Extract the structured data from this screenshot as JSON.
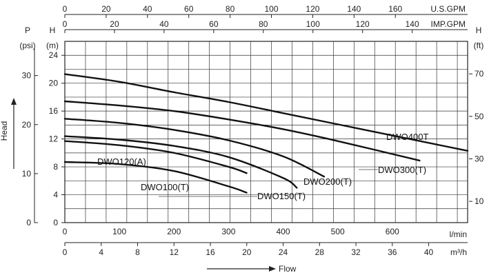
{
  "chart_data": {
    "type": "line",
    "title": "",
    "axes": {
      "top_us_gpm": {
        "unit": "U.S.GPM",
        "ticks": [
          "0",
          "20",
          "40",
          "60",
          "80",
          "100",
          "120",
          "140",
          "160"
        ]
      },
      "top_imp_gpm": {
        "unit": "IMP.GPM",
        "ticks": [
          "0",
          "20",
          "40",
          "60",
          "80",
          "100",
          "120",
          "140"
        ]
      },
      "left_psi": {
        "label": "P",
        "unit": "(psi)",
        "ticks": [
          "0",
          "10",
          "20",
          "30"
        ]
      },
      "left_m": {
        "label": "H",
        "unit": "(m)",
        "ticks": [
          "0",
          "4",
          "8",
          "12",
          "16",
          "20",
          "24"
        ],
        "ylim": [
          0,
          26
        ]
      },
      "right_ft": {
        "label": "H",
        "unit": "(ft)",
        "ticks": [
          "10",
          "30",
          "50",
          "70"
        ]
      },
      "bottom_lmin": {
        "unit": "l/min",
        "ticks": [
          "0",
          "100",
          "200",
          "300",
          "400",
          "500",
          "600"
        ],
        "xlim": [
          0,
          738
        ]
      },
      "bottom_m3h": {
        "unit": "m³/h",
        "ticks": [
          "0",
          "4",
          "8",
          "12",
          "16",
          "20",
          "24",
          "28",
          "32",
          "36",
          "40"
        ]
      }
    },
    "head_label": "Head",
    "flow_label": "Flow",
    "grid": true,
    "series": [
      {
        "name": "DWO400T",
        "x": [
          0,
          100,
          200,
          300,
          400,
          500,
          600,
          738
        ],
        "y": [
          21.3,
          20.2,
          18.7,
          17.3,
          15.7,
          14.1,
          12.5,
          10.3
        ]
      },
      {
        "name": "DWO300(T)",
        "x": [
          0,
          100,
          200,
          300,
          400,
          500,
          650
        ],
        "y": [
          17.4,
          16.8,
          16.0,
          14.8,
          13.4,
          11.7,
          8.9
        ]
      },
      {
        "name": "DWO200(T)",
        "x": [
          0,
          100,
          200,
          300,
          400,
          475
        ],
        "y": [
          14.9,
          14.3,
          13.3,
          11.8,
          9.5,
          6.6
        ]
      },
      {
        "name": "DWO150(T)",
        "x": [
          0,
          100,
          200,
          300,
          400,
          425
        ],
        "y": [
          12.4,
          11.9,
          11.0,
          9.4,
          6.4,
          5.0
        ]
      },
      {
        "name": "DWO120(A)",
        "x": [
          0,
          100,
          200,
          300,
          333
        ],
        "y": [
          11.7,
          11.1,
          10.0,
          8.0,
          7.1
        ]
      },
      {
        "name": "DWO100(T)",
        "x": [
          0,
          100,
          200,
          300,
          333
        ],
        "y": [
          8.7,
          8.4,
          7.4,
          5.2,
          4.3
        ]
      }
    ],
    "curve_labels": [
      "DWO400T",
      "DWO300(T)",
      "DWO200(T)",
      "DWO150(T)",
      "DWO120(A)",
      "DWO100(T)"
    ]
  }
}
